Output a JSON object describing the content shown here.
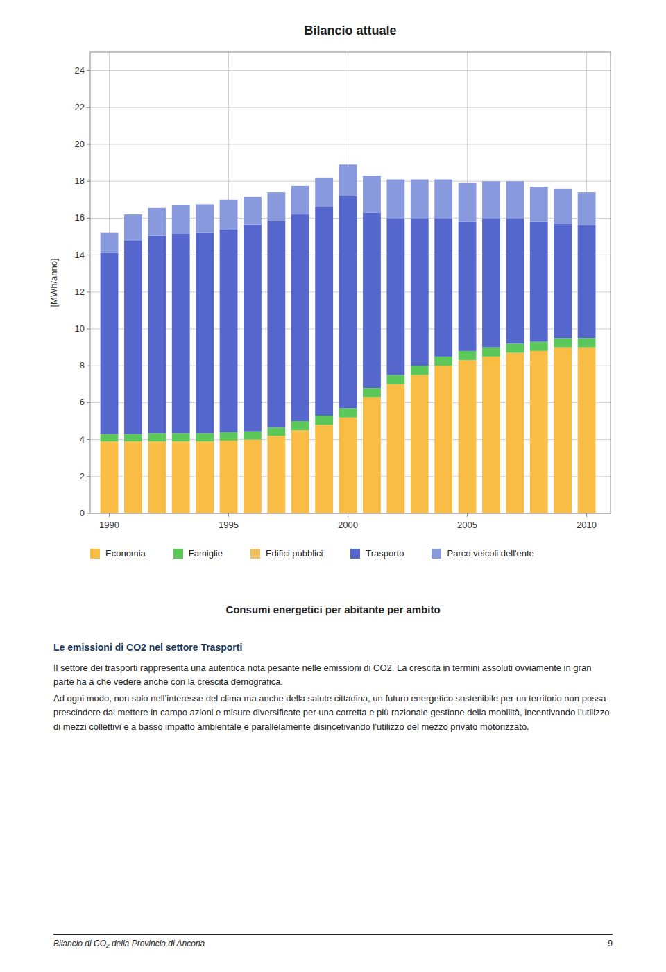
{
  "chart_data": {
    "type": "bar",
    "stacked": true,
    "title": "Bilancio attuale",
    "ylabel": "[MWh/anno]",
    "subtitle": "Consumi energetici per abitante per ambito",
    "x": [
      1990,
      1991,
      1992,
      1993,
      1994,
      1995,
      1996,
      1997,
      1998,
      1999,
      2000,
      2001,
      2002,
      2003,
      2004,
      2005,
      2006,
      2007,
      2008,
      2009,
      2010
    ],
    "series": [
      {
        "name": "Economia",
        "color": "#F9BC45",
        "values": [
          3.9,
          3.9,
          3.9,
          3.9,
          3.9,
          3.95,
          4.0,
          4.2,
          4.5,
          4.8,
          5.2,
          6.3,
          7.0,
          7.5,
          8.0,
          8.3,
          8.5,
          8.7,
          8.8,
          9.0,
          9.0
        ]
      },
      {
        "name": "Famiglie",
        "color": "#5DC85A",
        "values": [
          0.4,
          0.4,
          0.45,
          0.45,
          0.45,
          0.45,
          0.45,
          0.45,
          0.5,
          0.5,
          0.5,
          0.5,
          0.5,
          0.5,
          0.5,
          0.5,
          0.5,
          0.5,
          0.5,
          0.5,
          0.5
        ]
      },
      {
        "name": "Edifici pubblici",
        "color": "#F0C060",
        "values": [
          0.0,
          0.0,
          0.0,
          0.0,
          0.0,
          0.0,
          0.0,
          0.0,
          0.0,
          0.0,
          0.0,
          0.0,
          0.0,
          0.0,
          0.0,
          0.0,
          0.0,
          0.0,
          0.0,
          0.0,
          0.0
        ]
      },
      {
        "name": "Trasporto",
        "color": "#5566CC",
        "values": [
          9.8,
          10.5,
          10.7,
          10.8,
          10.85,
          11.0,
          11.2,
          11.2,
          11.2,
          11.3,
          11.5,
          9.5,
          8.5,
          8.0,
          7.5,
          7.0,
          7.0,
          6.8,
          6.5,
          6.2,
          6.1
        ]
      },
      {
        "name": "Parco veicoli dell'ente",
        "color": "#8899DD",
        "values": [
          1.1,
          1.4,
          1.5,
          1.55,
          1.55,
          1.6,
          1.5,
          1.55,
          1.55,
          1.6,
          1.7,
          2.0,
          2.1,
          2.1,
          2.1,
          2.1,
          2.0,
          2.0,
          1.9,
          1.9,
          1.8
        ]
      }
    ],
    "xlim": [
      1989.2,
      2011.0
    ],
    "xticks": [
      1990,
      1995,
      2000,
      2005,
      2010
    ],
    "ylim": [
      0,
      25
    ],
    "yticks": [
      0,
      2,
      4,
      6,
      8,
      10,
      12,
      14,
      16,
      18,
      20,
      22,
      24
    ],
    "grid": true
  },
  "text_heading": "Le emissioni di CO2 nel settore Trasporti",
  "text_body": [
    "Il settore dei trasporti rappresenta una autentica nota pesante nelle emissioni di CO2. La crescita in termini assoluti ovviamente in gran parte ha a che vedere anche con la crescita demografica.",
    "Ad ogni modo, non solo nell’interesse del clima ma anche della salute cittadina, un futuro energetico sostenibile per un territorio non possa prescindere dal mettere in campo azioni e misure diversificate per una corretta e più razionale gestione della mobilità, incentivando l’utilizzo di mezzi collettivi e a basso impatto ambientale e parallelamente disincetivando l’utilizzo del mezzo privato motorizzato."
  ],
  "footer_text": "Bilancio di CO₂ della Provincia di Ancona",
  "footer_page": "9"
}
